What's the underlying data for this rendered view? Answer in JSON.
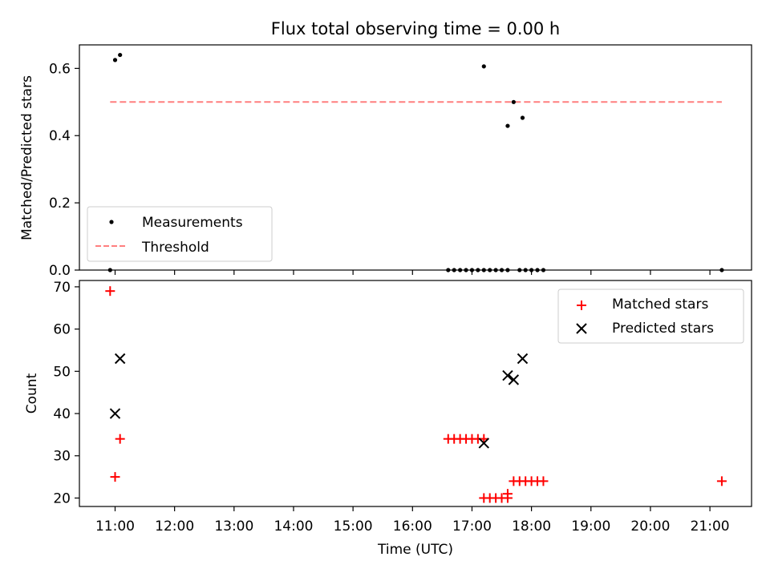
{
  "title": "Flux total observing time = 0.00 h",
  "colors": {
    "measurements": "#000000",
    "threshold": "#ff7f7f",
    "matched": "#ff0000",
    "predicted": "#000000"
  },
  "chart_data": [
    {
      "type": "scatter",
      "title": "Flux total observing time = 0.00 h",
      "xlabel": "",
      "ylabel": "Matched/Predicted stars",
      "xlim": [
        "10:24",
        "21:42"
      ],
      "ylim": [
        0,
        0.67
      ],
      "yticks": [
        0.0,
        0.2,
        0.4,
        0.6
      ],
      "ytick_labels": [
        "0.0",
        "0.2",
        "0.4",
        "0.6"
      ],
      "legend": {
        "location": "lower-left",
        "entries": [
          "Measurements",
          "Threshold"
        ]
      },
      "series": [
        {
          "name": "Measurements",
          "marker": "dot",
          "points": [
            [
              "10:55",
              0.0
            ],
            [
              "11:00",
              0.625
            ],
            [
              "11:05",
              0.64
            ],
            [
              "16:36",
              0.0
            ],
            [
              "16:42",
              0.0
            ],
            [
              "16:48",
              0.0
            ],
            [
              "16:54",
              0.0
            ],
            [
              "17:00",
              0.0
            ],
            [
              "17:06",
              0.0
            ],
            [
              "17:12",
              0.0
            ],
            [
              "17:12",
              0.606
            ],
            [
              "17:18",
              0.0
            ],
            [
              "17:24",
              0.0
            ],
            [
              "17:30",
              0.0
            ],
            [
              "17:36",
              0.0
            ],
            [
              "17:36",
              0.429
            ],
            [
              "17:42",
              0.5
            ],
            [
              "17:48",
              0.0
            ],
            [
              "17:51",
              0.453
            ],
            [
              "17:54",
              0.0
            ],
            [
              "18:00",
              0.0
            ],
            [
              "18:06",
              0.0
            ],
            [
              "18:12",
              0.0
            ],
            [
              "21:12",
              0.0
            ]
          ]
        },
        {
          "name": "Threshold",
          "style": "dashed-line",
          "points": [
            [
              "10:55",
              0.5
            ],
            [
              "21:12",
              0.5
            ]
          ]
        }
      ]
    },
    {
      "type": "scatter",
      "xlabel": "Time (UTC)",
      "ylabel": "Count",
      "xlim": [
        "10:24",
        "21:42"
      ],
      "ylim": [
        18,
        71.5
      ],
      "xticks": [
        "11:00",
        "12:00",
        "13:00",
        "14:00",
        "15:00",
        "16:00",
        "17:00",
        "18:00",
        "19:00",
        "20:00",
        "21:00"
      ],
      "yticks": [
        20,
        30,
        40,
        50,
        60,
        70
      ],
      "legend": {
        "location": "top-right",
        "entries": [
          "Matched stars",
          "Predicted stars"
        ]
      },
      "series": [
        {
          "name": "Matched stars",
          "marker": "plus",
          "points": [
            [
              "10:55",
              69
            ],
            [
              "11:00",
              25
            ],
            [
              "11:05",
              34
            ],
            [
              "16:36",
              34
            ],
            [
              "16:42",
              34
            ],
            [
              "16:48",
              34
            ],
            [
              "16:54",
              34
            ],
            [
              "17:00",
              34
            ],
            [
              "17:06",
              34
            ],
            [
              "17:12",
              34
            ],
            [
              "17:12",
              20
            ],
            [
              "17:18",
              20
            ],
            [
              "17:24",
              20
            ],
            [
              "17:30",
              20
            ],
            [
              "17:36",
              20
            ],
            [
              "17:36",
              21
            ],
            [
              "17:42",
              24
            ],
            [
              "17:48",
              24
            ],
            [
              "17:54",
              24
            ],
            [
              "18:00",
              24
            ],
            [
              "18:06",
              24
            ],
            [
              "18:12",
              24
            ],
            [
              "21:12",
              24
            ]
          ]
        },
        {
          "name": "Predicted stars",
          "marker": "x",
          "points": [
            [
              "11:00",
              40
            ],
            [
              "11:05",
              53
            ],
            [
              "17:12",
              33
            ],
            [
              "17:36",
              49
            ],
            [
              "17:42",
              48
            ],
            [
              "17:51",
              53
            ]
          ]
        }
      ]
    }
  ]
}
